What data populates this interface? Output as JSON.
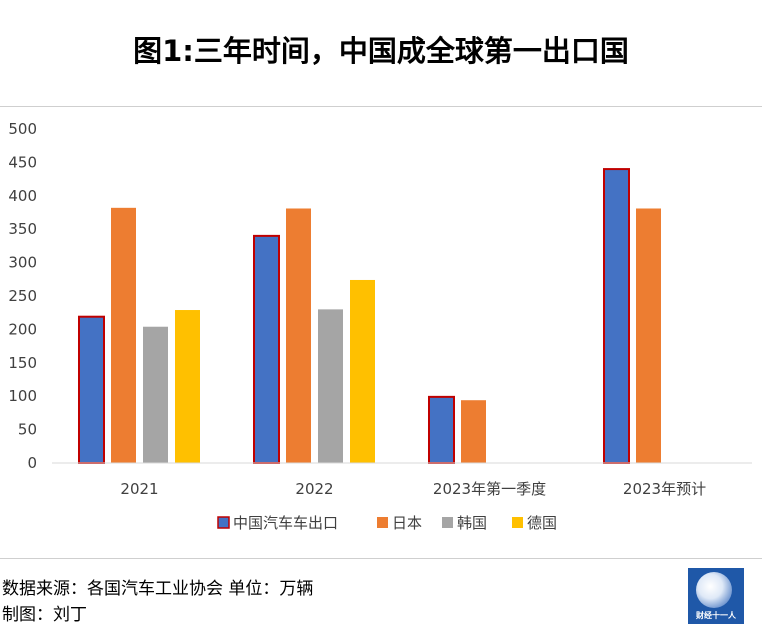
{
  "header": {
    "title": "图1:三年时间，中国成全球第一出口国"
  },
  "chart_data": {
    "type": "bar",
    "categories": [
      "2021",
      "2022",
      "2023年第一季度",
      "2023年预计"
    ],
    "series": [
      {
        "name": "中国汽车车出口",
        "color": "#4472c4",
        "outline": "#c00000",
        "values": [
          219,
          340,
          99,
          440
        ]
      },
      {
        "name": "日本",
        "color": "#ed7d31",
        "values": [
          382,
          381,
          94,
          381
        ]
      },
      {
        "name": "韩国",
        "color": "#a5a5a5",
        "values": [
          204,
          230,
          null,
          null
        ]
      },
      {
        "name": "德国",
        "color": "#ffc000",
        "values": [
          229,
          274,
          null,
          null
        ]
      }
    ],
    "ylim": [
      0,
      500
    ],
    "yticks": [
      "0",
      "50",
      "100",
      "150",
      "200",
      "250",
      "300",
      "350",
      "400",
      "450",
      "500"
    ],
    "legend_position": "bottom",
    "grid": false
  },
  "footer": {
    "source": "数据来源：各国汽车工业协会  单位：万辆",
    "author": "制图：刘丁"
  },
  "logo": {
    "text": "财经十一人"
  }
}
